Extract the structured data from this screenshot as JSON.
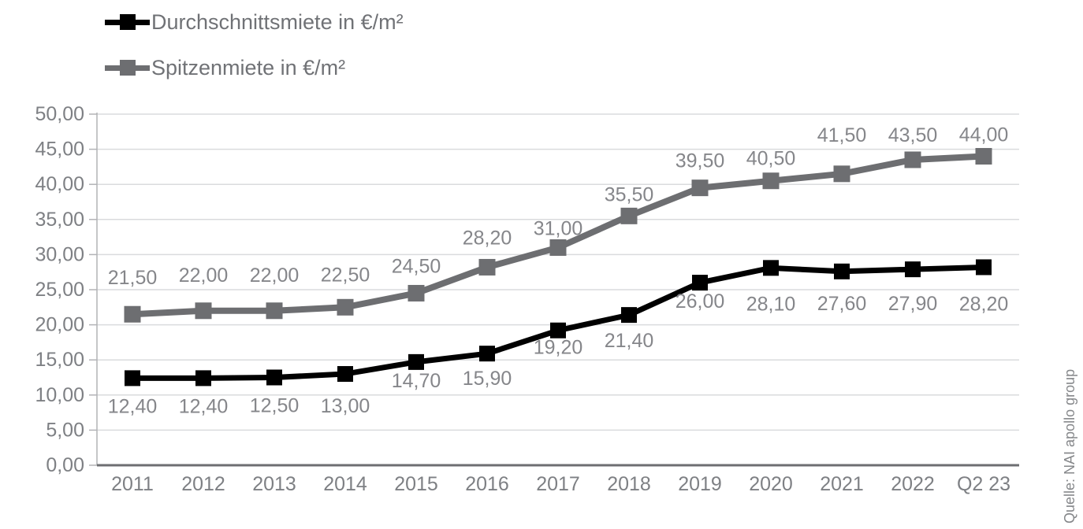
{
  "chart_data": {
    "type": "line",
    "categories": [
      "2011",
      "2012",
      "2013",
      "2014",
      "2015",
      "2016",
      "2017",
      "2018",
      "2019",
      "2020",
      "2021",
      "2022",
      "Q2 23"
    ],
    "series": [
      {
        "name": "Durchschnittsmiete in €/m²",
        "color": "#000000",
        "values": [
          12.4,
          12.4,
          12.5,
          13.0,
          14.7,
          15.9,
          19.2,
          21.4,
          26.0,
          28.1,
          27.6,
          27.9,
          28.2
        ],
        "labels": [
          "12,40",
          "12,40",
          "12,50",
          "13,00",
          "14,70",
          "15,90",
          "19,20",
          "21,40",
          "26,00",
          "28,10",
          "27,60",
          "27,90",
          "28,20"
        ],
        "label_position": "below"
      },
      {
        "name": "Spitzenmiete in €/m²",
        "color": "#6d6e71",
        "values": [
          21.5,
          22.0,
          22.0,
          22.5,
          24.5,
          28.2,
          31.0,
          35.5,
          39.5,
          40.5,
          41.5,
          43.5,
          44.0
        ],
        "labels": [
          "21,50",
          "22,00",
          "22,00",
          "22,50",
          "24,50",
          "28,20",
          "31,00",
          "35,50",
          "39,50",
          "40,50",
          "41,50",
          "43,50",
          "44,00"
        ],
        "label_position": "above"
      }
    ],
    "y_axis": {
      "min": 0,
      "max": 50,
      "step": 5,
      "tick_labels": [
        "0,00",
        "5,00",
        "10,00",
        "15,00",
        "20,00",
        "25,00",
        "30,00",
        "35,00",
        "40,00",
        "45,00",
        "50,00"
      ]
    },
    "grid": true,
    "legend_position": "top-left",
    "source_note": "Quelle: NAI apollo group",
    "colors": {
      "gridline": "#dadbdd",
      "y_axis_line": "#b2b3b6",
      "x_axis_line": "#6d6e71",
      "axis_text": "#7e8084",
      "data_label_text": "#85868a",
      "legend_text": "#707276"
    }
  }
}
